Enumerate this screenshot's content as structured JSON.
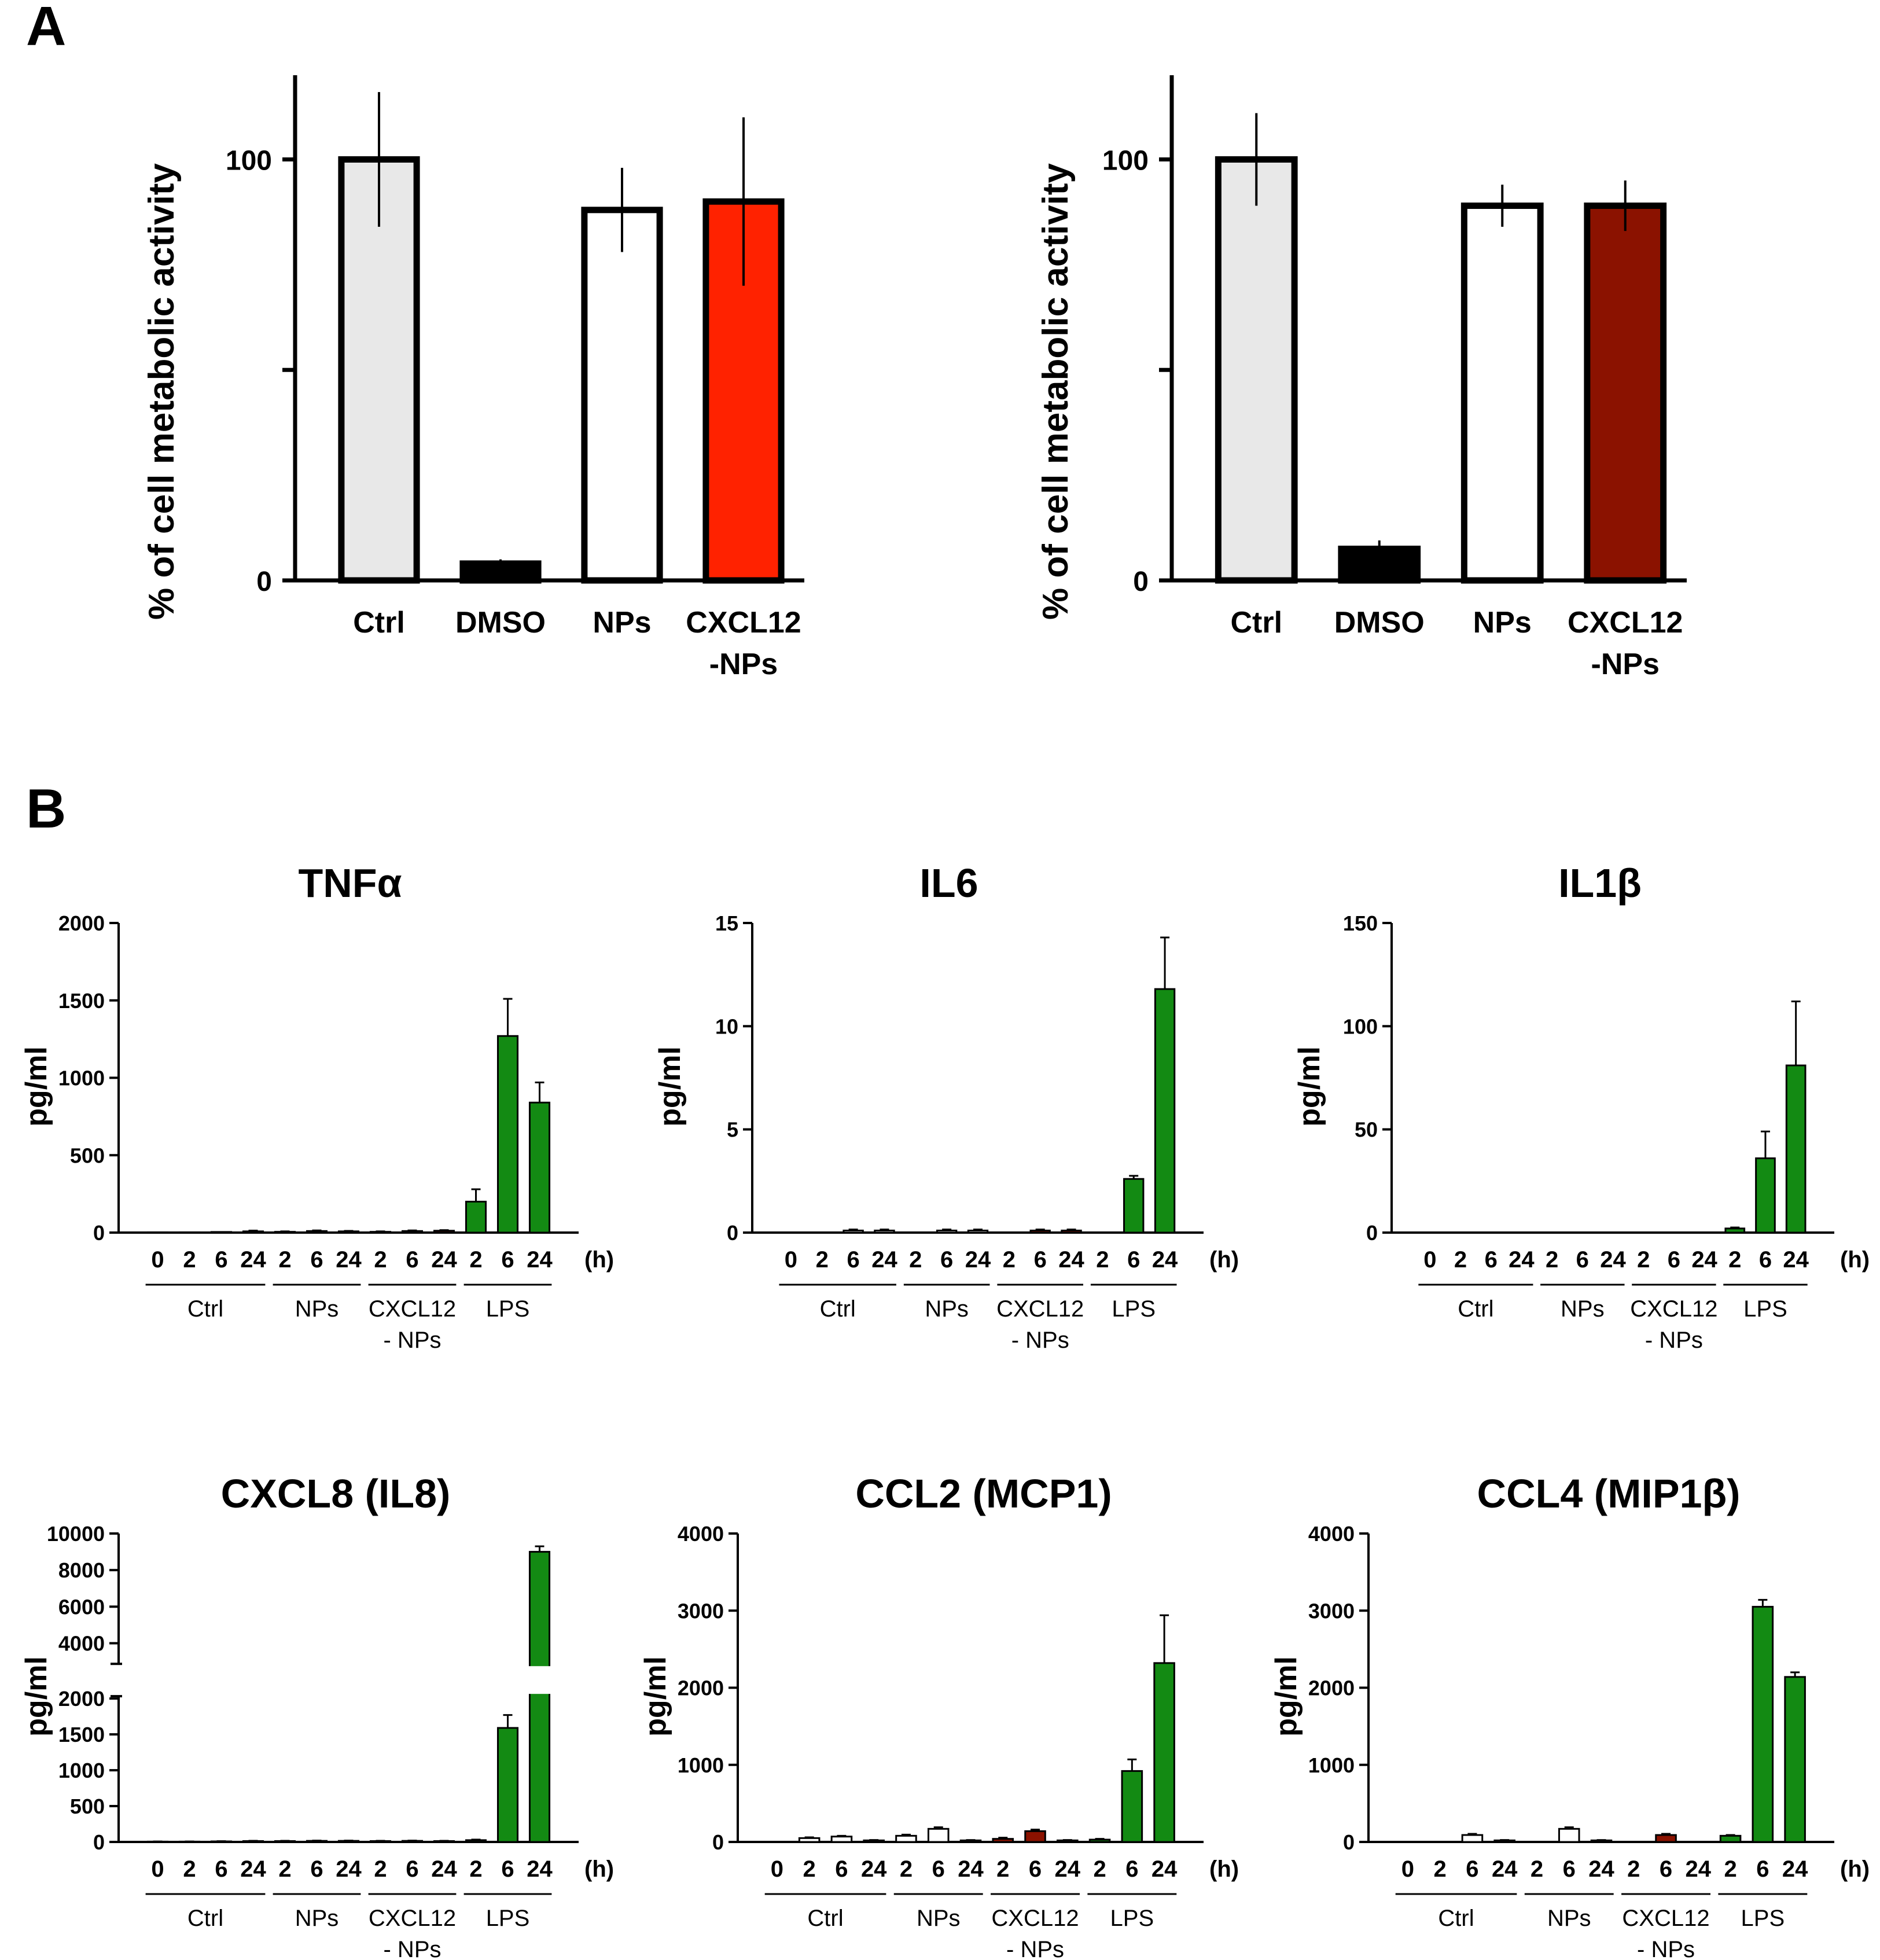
{
  "panels": {
    "a": "A",
    "b": "B"
  },
  "chart_data": [
    {
      "type": "bar",
      "panel": "A",
      "title": "",
      "ylabel": "% of cell metabolic activity",
      "categories": [
        "Ctrl",
        "DMSO",
        "NPs",
        "CXCL12\n-NPs"
      ],
      "values": [
        100,
        4,
        88,
        90
      ],
      "errors": [
        16,
        1,
        10,
        20
      ],
      "colors": [
        "#e8e8e8",
        "#000000",
        "#ffffff",
        "#ff2200"
      ],
      "ylim": [
        0,
        120
      ],
      "yticks": [
        0,
        50,
        100
      ],
      "ytick_labels": [
        "0",
        "",
        "100"
      ]
    },
    {
      "type": "bar",
      "panel": "A",
      "title": "",
      "ylabel": "% of cell metabolic activity",
      "categories": [
        "Ctrl",
        "DMSO",
        "NPs",
        "CXCL12\n-NPs"
      ],
      "values": [
        100,
        7.5,
        89,
        89
      ],
      "errors": [
        11,
        2,
        5,
        6
      ],
      "colors": [
        "#e8e8e8",
        "#000000",
        "#ffffff",
        "#8b1200"
      ],
      "ylim": [
        0,
        120
      ],
      "yticks": [
        0,
        50,
        100
      ],
      "ytick_labels": [
        "0",
        "",
        "100"
      ]
    },
    {
      "type": "bar",
      "panel": "B",
      "title": "TNFα",
      "ylabel": "pg/ml",
      "time_unit": "(h)",
      "groups": [
        {
          "name": "Ctrl",
          "times": [
            "0",
            "2",
            "6",
            "24"
          ],
          "values": [
            2,
            2,
            4,
            8
          ],
          "errors": [
            0,
            0,
            0,
            5
          ],
          "color": "#ffffff"
        },
        {
          "name": "NPs",
          "times": [
            "2",
            "6",
            "24"
          ],
          "values": [
            5,
            10,
            8
          ],
          "errors": [
            3,
            4,
            3
          ],
          "color": "#ffffff"
        },
        {
          "name": "CXCL12\n- NPs",
          "times": [
            "2",
            "6",
            "24"
          ],
          "values": [
            5,
            10,
            12
          ],
          "errors": [
            3,
            4,
            4
          ],
          "color": "#8b1200"
        },
        {
          "name": "LPS",
          "times": [
            "2",
            "6",
            "24"
          ],
          "values": [
            200,
            1270,
            840
          ],
          "errors": [
            80,
            240,
            130
          ],
          "color": "#138a13"
        }
      ],
      "ylim": [
        0,
        2000
      ],
      "yticks": [
        0,
        500,
        1000,
        1500,
        2000
      ]
    },
    {
      "type": "bar",
      "panel": "B",
      "title": "IL6",
      "ylabel": "pg/ml",
      "time_unit": "(h)",
      "groups": [
        {
          "name": "Ctrl",
          "times": [
            "0",
            "2",
            "6",
            "24"
          ],
          "values": [
            0,
            0,
            0.1,
            0.1
          ],
          "errors": [
            0,
            0,
            0.05,
            0.05
          ],
          "color": "#ffffff"
        },
        {
          "name": "NPs",
          "times": [
            "2",
            "6",
            "24"
          ],
          "values": [
            0,
            0.1,
            0.1
          ],
          "errors": [
            0,
            0.05,
            0.05
          ],
          "color": "#ffffff"
        },
        {
          "name": "CXCL12\n- NPs",
          "times": [
            "2",
            "6",
            "24"
          ],
          "values": [
            0,
            0.1,
            0.1
          ],
          "errors": [
            0,
            0.05,
            0.05
          ],
          "color": "#8b1200"
        },
        {
          "name": "LPS",
          "times": [
            "2",
            "6",
            "24"
          ],
          "values": [
            0,
            2.6,
            11.8
          ],
          "errors": [
            0,
            0.15,
            2.5
          ],
          "color": "#138a13"
        }
      ],
      "ylim": [
        0,
        15
      ],
      "yticks": [
        0,
        5,
        10,
        15
      ]
    },
    {
      "type": "bar",
      "panel": "B",
      "title": "IL1β",
      "ylabel": "pg/ml",
      "time_unit": "(h)",
      "groups": [
        {
          "name": "Ctrl",
          "times": [
            "0",
            "2",
            "6",
            "24"
          ],
          "values": [
            0,
            0,
            0,
            0
          ],
          "errors": [
            0,
            0,
            0,
            0
          ],
          "color": "#ffffff"
        },
        {
          "name": "NPs",
          "times": [
            "2",
            "6",
            "24"
          ],
          "values": [
            0,
            0,
            0
          ],
          "errors": [
            0,
            0,
            0
          ],
          "color": "#ffffff"
        },
        {
          "name": "CXCL12\n- NPs",
          "times": [
            "2",
            "6",
            "24"
          ],
          "values": [
            0,
            0,
            0
          ],
          "errors": [
            0,
            0,
            0
          ],
          "color": "#8b1200"
        },
        {
          "name": "LPS",
          "times": [
            "2",
            "6",
            "24"
          ],
          "values": [
            2,
            36,
            81
          ],
          "errors": [
            0.5,
            13,
            31
          ],
          "color": "#138a13"
        }
      ],
      "ylim": [
        0,
        150
      ],
      "yticks": [
        0,
        50,
        100,
        150
      ]
    },
    {
      "type": "bar",
      "panel": "B",
      "title": "CXCL8 (IL8)",
      "ylabel": "pg/ml",
      "time_unit": "(h)",
      "axis_break": [
        2000,
        3000
      ],
      "groups": [
        {
          "name": "Ctrl",
          "times": [
            "0",
            "2",
            "6",
            "24"
          ],
          "values": [
            5,
            5,
            8,
            12
          ],
          "errors": [
            2,
            2,
            3,
            4
          ],
          "color": "#ffffff"
        },
        {
          "name": "NPs",
          "times": [
            "2",
            "6",
            "24"
          ],
          "values": [
            12,
            15,
            15
          ],
          "errors": [
            4,
            4,
            4
          ],
          "color": "#ffffff"
        },
        {
          "name": "CXCL12\n- NPs",
          "times": [
            "2",
            "6",
            "24"
          ],
          "values": [
            12,
            15,
            12
          ],
          "errors": [
            4,
            4,
            4
          ],
          "color": "#8b1200"
        },
        {
          "name": "LPS",
          "times": [
            "2",
            "6",
            "24"
          ],
          "values": [
            25,
            1590,
            9000
          ],
          "errors": [
            8,
            180,
            300
          ],
          "color": "#138a13"
        }
      ],
      "ylim": [
        0,
        10000
      ],
      "yticks": [
        0,
        500,
        1000,
        1500,
        2000,
        4000,
        6000,
        8000,
        10000
      ]
    },
    {
      "type": "bar",
      "panel": "B",
      "title": "CCL2 (MCP1)",
      "ylabel": "pg/ml",
      "time_unit": "(h)",
      "groups": [
        {
          "name": "Ctrl",
          "times": [
            "0",
            "2",
            "6",
            "24"
          ],
          "values": [
            0,
            50,
            70,
            20
          ],
          "errors": [
            0,
            10,
            10,
            5
          ],
          "color": "#ffffff"
        },
        {
          "name": "NPs",
          "times": [
            "2",
            "6",
            "24"
          ],
          "values": [
            80,
            170,
            20
          ],
          "errors": [
            15,
            20,
            5
          ],
          "color": "#ffffff"
        },
        {
          "name": "CXCL12\n- NPs",
          "times": [
            "2",
            "6",
            "24"
          ],
          "values": [
            40,
            140,
            20
          ],
          "errors": [
            15,
            20,
            5
          ],
          "color": "#8b1200"
        },
        {
          "name": "LPS",
          "times": [
            "2",
            "6",
            "24"
          ],
          "values": [
            30,
            920,
            2320
          ],
          "errors": [
            10,
            150,
            620
          ],
          "color": "#138a13"
        }
      ],
      "ylim": [
        0,
        4000
      ],
      "yticks": [
        0,
        1000,
        2000,
        3000,
        4000
      ]
    },
    {
      "type": "bar",
      "panel": "B",
      "title": "CCL4 (MIP1β)",
      "ylabel": "pg/ml",
      "time_unit": "(h)",
      "groups": [
        {
          "name": "Ctrl",
          "times": [
            "0",
            "2",
            "6",
            "24"
          ],
          "values": [
            0,
            0,
            90,
            20
          ],
          "errors": [
            0,
            0,
            15,
            5
          ],
          "color": "#ffffff"
        },
        {
          "name": "NPs",
          "times": [
            "2",
            "6",
            "24"
          ],
          "values": [
            0,
            170,
            20
          ],
          "errors": [
            0,
            20,
            5
          ],
          "color": "#ffffff"
        },
        {
          "name": "CXCL12\n- NPs",
          "times": [
            "2",
            "6",
            "24"
          ],
          "values": [
            0,
            90,
            0
          ],
          "errors": [
            0,
            15,
            0
          ],
          "color": "#8b1200"
        },
        {
          "name": "LPS",
          "times": [
            "2",
            "6",
            "24"
          ],
          "values": [
            80,
            3050,
            2140
          ],
          "errors": [
            10,
            90,
            60
          ],
          "color": "#138a13"
        }
      ],
      "ylim": [
        0,
        4000
      ],
      "yticks": [
        0,
        1000,
        2000,
        3000,
        4000
      ]
    }
  ]
}
